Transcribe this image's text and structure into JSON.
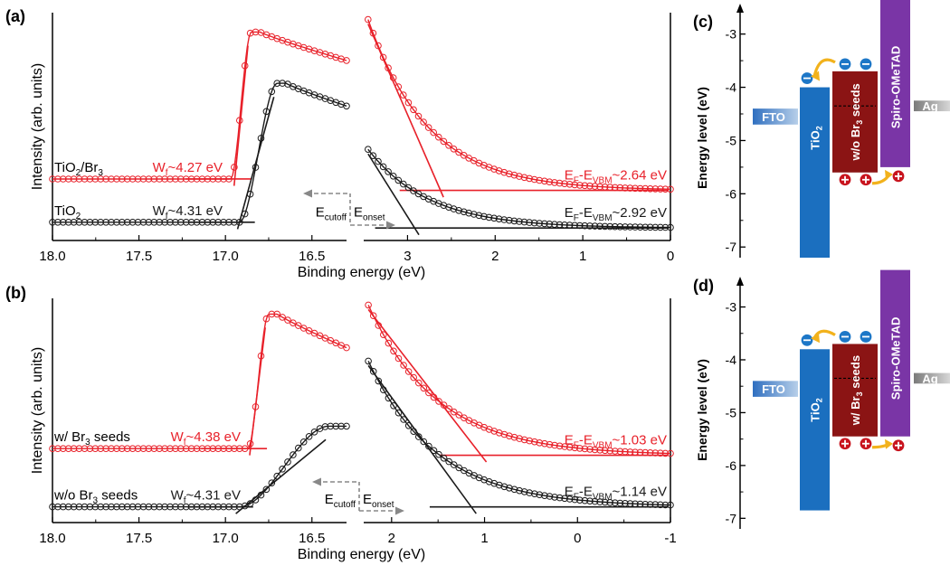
{
  "chart_data": [
    {
      "panel_label": "(a)",
      "type": "scatter",
      "ylabel": "Intensity (arb. units)",
      "xlabel": "Binding energy (eV)",
      "left": {
        "xlim": [
          18.0,
          16.3
        ],
        "ticks": [
          "18.0",
          "17.5",
          "17.0",
          "16.5"
        ],
        "tick_values": [
          18.0,
          17.5,
          17.0,
          16.5
        ],
        "series": [
          {
            "sample_label": "TiO2/Br3",
            "label_main": "TiO",
            "label_sub": "2",
            "label_tail": "/Br",
            "label_sub2": "3",
            "color": "#e8212a",
            "baseline": 0.27,
            "edge": 16.95,
            "onset": 16.93,
            "peak_x": 16.8,
            "peak_y": 0.915,
            "end_y": 0.79,
            "annotation": "W",
            "annotation_sub": "f",
            "annotation_value": "~4.27 eV"
          },
          {
            "sample_label": "TiO2",
            "label_main": "TiO",
            "label_sub": "2",
            "label_tail": "",
            "label_sub2": "",
            "color": "#1a1a1a",
            "baseline": 0.08,
            "edge": 16.9,
            "onset": 16.91,
            "peak_x": 16.65,
            "peak_y": 0.69,
            "end_y": 0.59,
            "annotation": "W",
            "annotation_sub": "f",
            "annotation_value": "~4.31 eV"
          }
        ]
      },
      "right": {
        "xlim": [
          3.5,
          0.0
        ],
        "ticks": [
          "3",
          "2",
          "1",
          "0"
        ],
        "tick_values": [
          3,
          2,
          1,
          0
        ],
        "series": [
          {
            "color": "#e8212a",
            "baseline": 0.22,
            "start_y": 0.97,
            "onset": 2.64,
            "annotation_value": "~2.64 eV"
          },
          {
            "color": "#1a1a1a",
            "baseline": 0.055,
            "start_y": 0.4,
            "onset": 2.92,
            "annotation_value": "~2.92 eV"
          }
        ]
      },
      "arrow_left_label": "E",
      "arrow_left_sub": "cutoff",
      "arrow_right_label": "E",
      "arrow_right_sub": "onset",
      "vbm_prefix": "E",
      "vbm_sub1": "F",
      "vbm_mid": "-E",
      "vbm_sub2": "VBM"
    },
    {
      "panel_label": "(b)",
      "type": "scatter",
      "ylabel": "Intensity (arb. units)",
      "xlabel": "Binding energy (eV)",
      "left": {
        "xlim": [
          18.0,
          16.3
        ],
        "ticks": [
          "18.0",
          "17.5",
          "17.0",
          "16.5"
        ],
        "tick_values": [
          18.0,
          17.5,
          17.0,
          16.5
        ],
        "series": [
          {
            "sample_label": "w/ Br3 seeds",
            "label_main": "w/ Br",
            "label_sub": "3",
            "label_tail": " seeds",
            "label_sub2": "",
            "color": "#e8212a",
            "baseline": 0.33,
            "edge": 16.85,
            "onset": 16.84,
            "peak_x": 16.7,
            "peak_y": 0.93,
            "end_y": 0.78,
            "annotation": "W",
            "annotation_sub": "f",
            "annotation_value": "~4.38 eV"
          },
          {
            "sample_label": "w/o Br3 seeds",
            "label_main": "w/o Br",
            "label_sub": "3",
            "label_tail": " seeds",
            "label_sub2": "",
            "color": "#1a1a1a",
            "baseline": 0.07,
            "edge": 16.9,
            "onset": 16.92,
            "peak_x": 16.35,
            "peak_y": 0.43,
            "end_y": 0.43,
            "annotation": "W",
            "annotation_sub": "f",
            "annotation_value": "~4.31 eV"
          }
        ]
      },
      "right": {
        "xlim": [
          2.3,
          -1.0
        ],
        "ticks": [
          "2",
          "1",
          "0",
          "-1"
        ],
        "tick_values": [
          2,
          1,
          0,
          -1
        ],
        "series": [
          {
            "color": "#e8212a",
            "baseline": 0.3,
            "start_y": 0.97,
            "onset": 1.03,
            "annotation_value": "~1.03 eV"
          },
          {
            "color": "#1a1a1a",
            "baseline": 0.07,
            "start_y": 0.72,
            "onset": 1.14,
            "annotation_value": "~1.14 eV"
          }
        ]
      },
      "arrow_left_label": "E",
      "arrow_left_sub": "cutoff",
      "arrow_right_label": "E",
      "arrow_right_sub": "onset",
      "vbm_prefix": "E",
      "vbm_sub1": "F",
      "vbm_mid": "-E",
      "vbm_sub2": "VBM"
    },
    {
      "panel_label": "(c)",
      "type": "bar",
      "ylabel": "Energy level (eV)",
      "ylim": [
        -7.2,
        -2.7
      ],
      "ticks": [
        "-3",
        "-4",
        "-5",
        "-6",
        "-7"
      ],
      "tick_values": [
        -3,
        -4,
        -5,
        -6,
        -7
      ],
      "levels": [
        {
          "name": "FTO",
          "top": -4.4,
          "bottom": -4.7,
          "color": "#3a78c4",
          "fade": true
        },
        {
          "name": "TiO2",
          "main": "TiO",
          "sub": "2",
          "top": -4.0,
          "bottom": -7.2,
          "color": "#1b6fbf"
        },
        {
          "name": "w/o Br3 seeds",
          "main": "w/o Br",
          "sub": "3",
          "tail": " seeds",
          "top": -3.7,
          "bottom": -5.6,
          "fermi": -4.35,
          "color": "#8b1414"
        },
        {
          "name": "Spiro-OMeTAD",
          "top": -2.3,
          "bottom": -5.5,
          "color": "#7a35a6"
        },
        {
          "name": "Ag",
          "top": -4.25,
          "bottom": -4.45,
          "color": "#888888",
          "fade": true
        }
      ]
    },
    {
      "panel_label": "(d)",
      "type": "bar",
      "ylabel": "Energy level (eV)",
      "ylim": [
        -7.2,
        -2.7
      ],
      "ticks": [
        "-3",
        "-4",
        "-5",
        "-6",
        "-7"
      ],
      "tick_values": [
        -3,
        -4,
        -5,
        -6,
        -7
      ],
      "levels": [
        {
          "name": "FTO",
          "top": -4.4,
          "bottom": -4.7,
          "color": "#3a78c4",
          "fade": true
        },
        {
          "name": "TiO2",
          "main": "TiO",
          "sub": "2",
          "top": -3.8,
          "bottom": -6.85,
          "color": "#1b6fbf"
        },
        {
          "name": "w/ Br3 seeds",
          "main": "w/ Br",
          "sub": "3",
          "tail": " seeds",
          "top": -3.7,
          "bottom": -5.45,
          "fermi": -4.35,
          "color": "#8b1414"
        },
        {
          "name": "Spiro-OMeTAD",
          "top": -2.3,
          "bottom": -5.45,
          "color": "#7a35a6"
        },
        {
          "name": "Ag",
          "top": -4.25,
          "bottom": -4.45,
          "color": "#888888",
          "fade": true
        }
      ]
    }
  ]
}
